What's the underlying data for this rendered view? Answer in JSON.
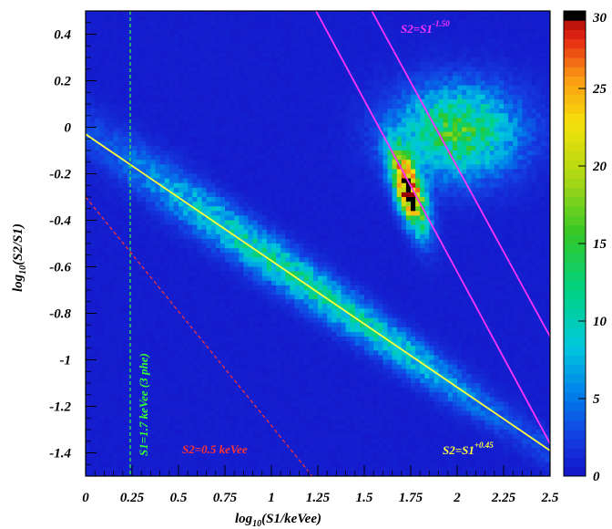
{
  "chart_data": {
    "type": "heatmap",
    "xlabel": "log10(S1/keVee)",
    "ylabel": "log10(S2/S1)",
    "xlim": [
      0,
      2.5
    ],
    "ylim": [
      -1.5,
      0.5
    ],
    "x_ticks": [
      "0",
      "0.25",
      "0.5",
      "0.75",
      "1",
      "1.25",
      "1.5",
      "1.75",
      "2",
      "2.25",
      "2.5"
    ],
    "y_ticks": [
      "0.4",
      "0.2",
      "0",
      "-0.2",
      "-0.4",
      "-0.6",
      "-0.8",
      "-1",
      "-1.2",
      "-1.4"
    ],
    "colorbar": {
      "range": [
        0,
        30
      ],
      "ticks": [
        "0",
        "5",
        "10",
        "15",
        "20",
        "25",
        "30"
      ]
    },
    "bands": [
      {
        "name": "lower band",
        "line": "log10(S2/S1) = -0.55*log10(S1) - 0.02",
        "x_range": [
          0.05,
          2.5
        ],
        "width": 0.055,
        "peak": 10
      },
      {
        "name": "central blob",
        "center": [
          1.74,
          -0.27
        ],
        "direction": [
          -0.18,
          0.44
        ],
        "width": 0.045,
        "peak": 32
      },
      {
        "name": "upper cloud",
        "center": [
          2.0,
          -0.02
        ],
        "spread": [
          0.22,
          0.13
        ],
        "peak": 14
      }
    ],
    "lines": [
      {
        "label": "S2=S1+0.45",
        "type": "solid",
        "color": "#ffff40",
        "points": [
          [
            0,
            -0.03
          ],
          [
            2.5,
            -1.39
          ]
        ]
      },
      {
        "label": "S2=S1-1.50",
        "type": "solid",
        "color": "#ff33ff",
        "points": [
          [
            1.24,
            0.5
          ],
          [
            2.5,
            -1.36
          ]
        ]
      },
      {
        "label": "",
        "type": "solid",
        "color": "#ff33ff",
        "points": [
          [
            1.54,
            0.5
          ],
          [
            2.5,
            -0.9
          ]
        ]
      },
      {
        "label": "S2=0.5 keVee",
        "type": "dashed",
        "color": "#ff3333",
        "points": [
          [
            0,
            -0.3
          ],
          [
            1.22,
            -1.5
          ]
        ]
      },
      {
        "label": "S1=1.7 keVee (3 phe)",
        "type": "dashed",
        "color": "#33ff33",
        "points": [
          [
            0.24,
            0.5
          ],
          [
            0.24,
            -1.5
          ]
        ]
      }
    ],
    "annotations": {
      "s2_s1_045": {
        "base": "S2=S1",
        "exp": "+0.45",
        "color": "#ffff40"
      },
      "s2_s1_150": {
        "base": "S2=S1",
        "exp": "-1.50",
        "color": "#ff33ff"
      },
      "s2_05": {
        "text": "S2=0.5 keVee",
        "color": "#ff3333"
      },
      "s1_17": {
        "text": "S1=1.7 keVee (3 phe)",
        "color": "#33ff33"
      }
    },
    "axis_label_parts": {
      "x": {
        "pre": "log",
        "sub": "10",
        "post": "(S1/keVee)"
      },
      "y": {
        "pre": "log",
        "sub": "10",
        "post": "(S2/S1)"
      }
    }
  }
}
